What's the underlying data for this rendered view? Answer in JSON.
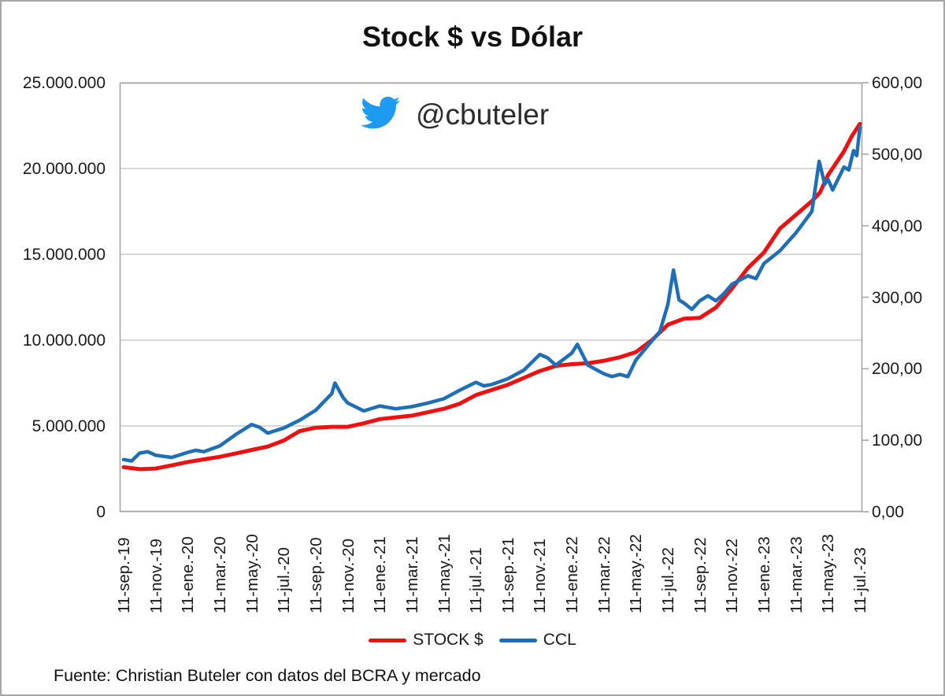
{
  "title": "Stock $ vs Dólar",
  "watermark": {
    "icon": "twitter-bird-icon",
    "icon_color": "#1d9bf0",
    "handle": "@cbuteler"
  },
  "source_note": "Fuente: Christian Buteler con datos del BCRA y mercado",
  "legend": {
    "stock_label": "STOCK $",
    "ccl_label": "CCL"
  },
  "colors": {
    "stock": "#ee1111",
    "ccl": "#1f6fb8",
    "grid": "#c0c0c0",
    "plot_border": "#a6a6a6"
  },
  "left_axis": {
    "labels": [
      "25.000.000",
      "20.000.000",
      "15.000.000",
      "10.000.000",
      "5.000.000",
      "0"
    ],
    "tick_values": [
      25000000,
      20000000,
      15000000,
      10000000,
      5000000,
      0
    ],
    "min": 0,
    "max": 25000000
  },
  "right_axis": {
    "labels": [
      "600,00",
      "500,00",
      "400,00",
      "300,00",
      "200,00",
      "100,00",
      "0,00"
    ],
    "tick_values": [
      600,
      500,
      400,
      300,
      200,
      100,
      0
    ],
    "min": 0,
    "max": 600
  },
  "x_axis": {
    "labels": [
      "11-sep.-19",
      "11-nov.-19",
      "11-ene.-20",
      "11-mar.-20",
      "11-may.-20",
      "11-jul.-20",
      "11-sep.-20",
      "11-nov.-20",
      "11-ene.-21",
      "11-mar.-21",
      "11-may.-21",
      "11-jul.-21",
      "11-sep.-21",
      "11-nov.-21",
      "11-ene.-22",
      "11-mar.-22",
      "11-may.-22",
      "11-jul.-22",
      "11-sep.-22",
      "11-nov.-22",
      "11-ene.-23",
      "11-mar.-23",
      "11-may.-23",
      "11-jul.-23"
    ]
  },
  "chart_data": {
    "type": "line",
    "title": "Stock $ vs Dólar",
    "x_unit": "months since 11-sep-2019 (x labels every 2 months)",
    "x_range": [
      0,
      46
    ],
    "grid": "horizontal",
    "legend_position": "bottom",
    "series": [
      {
        "name": "STOCK $",
        "axis": "left",
        "axis_range": [
          0,
          25000000
        ],
        "color": "#ee1111",
        "points": [
          [
            0,
            2600000
          ],
          [
            1,
            2480000
          ],
          [
            2,
            2520000
          ],
          [
            3,
            2700000
          ],
          [
            4,
            2900000
          ],
          [
            5,
            3050000
          ],
          [
            6,
            3200000
          ],
          [
            7,
            3400000
          ],
          [
            8,
            3600000
          ],
          [
            9,
            3800000
          ],
          [
            10,
            4150000
          ],
          [
            11,
            4700000
          ],
          [
            12,
            4900000
          ],
          [
            13,
            4950000
          ],
          [
            14,
            4950000
          ],
          [
            15,
            5150000
          ],
          [
            16,
            5400000
          ],
          [
            17,
            5500000
          ],
          [
            18,
            5600000
          ],
          [
            19,
            5800000
          ],
          [
            20,
            6000000
          ],
          [
            21,
            6300000
          ],
          [
            22,
            6800000
          ],
          [
            23,
            7100000
          ],
          [
            24,
            7400000
          ],
          [
            25,
            7800000
          ],
          [
            26,
            8200000
          ],
          [
            27,
            8500000
          ],
          [
            28,
            8600000
          ],
          [
            29,
            8650000
          ],
          [
            30,
            8800000
          ],
          [
            31,
            9000000
          ],
          [
            32,
            9300000
          ],
          [
            33,
            10000000
          ],
          [
            34,
            10900000
          ],
          [
            35,
            11250000
          ],
          [
            36,
            11300000
          ],
          [
            37,
            11900000
          ],
          [
            38,
            13000000
          ],
          [
            39,
            14200000
          ],
          [
            40,
            15100000
          ],
          [
            41,
            16500000
          ],
          [
            42,
            17300000
          ],
          [
            43,
            18100000
          ],
          [
            43.5,
            18600000
          ],
          [
            44,
            19600000
          ],
          [
            45,
            21000000
          ],
          [
            45.5,
            21900000
          ],
          [
            46,
            22600000
          ]
        ]
      },
      {
        "name": "CCL",
        "axis": "right",
        "axis_range": [
          0,
          600
        ],
        "color": "#1f6fb8",
        "points": [
          [
            0,
            73
          ],
          [
            0.5,
            71
          ],
          [
            1,
            82
          ],
          [
            1.5,
            84
          ],
          [
            2,
            79
          ],
          [
            3,
            76
          ],
          [
            4,
            83
          ],
          [
            4.5,
            86
          ],
          [
            5,
            84
          ],
          [
            6,
            92
          ],
          [
            7,
            108
          ],
          [
            8,
            122
          ],
          [
            8.5,
            118
          ],
          [
            9,
            110
          ],
          [
            10,
            117
          ],
          [
            11,
            128
          ],
          [
            12,
            142
          ],
          [
            13,
            165
          ],
          [
            13.2,
            180
          ],
          [
            13.7,
            160
          ],
          [
            14,
            152
          ],
          [
            15,
            141
          ],
          [
            16,
            148
          ],
          [
            17,
            144
          ],
          [
            18,
            147
          ],
          [
            19,
            152
          ],
          [
            20,
            158
          ],
          [
            21,
            170
          ],
          [
            22,
            181
          ],
          [
            22.5,
            176
          ],
          [
            23,
            178
          ],
          [
            24,
            186
          ],
          [
            25,
            198
          ],
          [
            26,
            220
          ],
          [
            26.5,
            215
          ],
          [
            27,
            205
          ],
          [
            28,
            222
          ],
          [
            28.35,
            234
          ],
          [
            29,
            205
          ],
          [
            30,
            193
          ],
          [
            30.5,
            189
          ],
          [
            31,
            192
          ],
          [
            31.5,
            189
          ],
          [
            32,
            212
          ],
          [
            33,
            239
          ],
          [
            33.5,
            252
          ],
          [
            34,
            290
          ],
          [
            34.35,
            338
          ],
          [
            34.7,
            296
          ],
          [
            35,
            292
          ],
          [
            35.5,
            283
          ],
          [
            36,
            295
          ],
          [
            36.5,
            302
          ],
          [
            37,
            295
          ],
          [
            37.5,
            305
          ],
          [
            38,
            318
          ],
          [
            39,
            330
          ],
          [
            39.5,
            326
          ],
          [
            40,
            347
          ],
          [
            41,
            365
          ],
          [
            42,
            390
          ],
          [
            43,
            420
          ],
          [
            43.45,
            490
          ],
          [
            43.8,
            458
          ],
          [
            44,
            465
          ],
          [
            44.3,
            450
          ],
          [
            45,
            482
          ],
          [
            45.3,
            478
          ],
          [
            45.6,
            505
          ],
          [
            45.8,
            498
          ],
          [
            46,
            538
          ]
        ]
      }
    ]
  }
}
